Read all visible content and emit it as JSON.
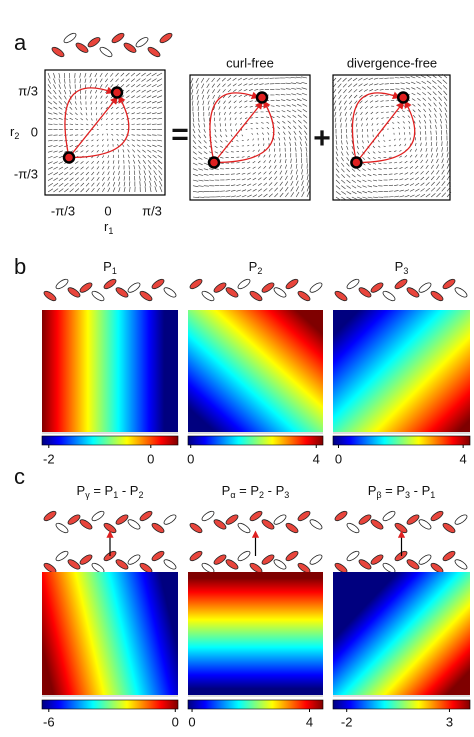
{
  "panels": {
    "a": {
      "label": "a",
      "titles": [
        "curl-free",
        "divergence-free"
      ],
      "operators": [
        "=",
        "+"
      ],
      "yticks": [
        "π/3",
        "0",
        "-π/3"
      ],
      "ylabel": [
        "r",
        "2"
      ],
      "xticks": [
        "-π/3",
        "0",
        "π/3"
      ],
      "xlabel": [
        "r",
        "1"
      ]
    },
    "b": {
      "label": "b",
      "maps": [
        {
          "title": [
            "P",
            "1"
          ],
          "cbar": [
            "-2",
            "0"
          ]
        },
        {
          "title": [
            "P",
            "2"
          ],
          "cbar": [
            "0",
            "4"
          ]
        },
        {
          "title": [
            "P",
            "3"
          ],
          "cbar": [
            "0",
            "4"
          ]
        }
      ]
    },
    "c": {
      "label": "c",
      "maps": [
        {
          "title": [
            "P",
            "γ",
            " = P",
            "1",
            " - P",
            "2"
          ],
          "cbar": [
            "-6",
            "0"
          ]
        },
        {
          "title": [
            "P",
            "α",
            " = P",
            "2",
            " - P",
            "3"
          ],
          "cbar": [
            "0",
            "4"
          ]
        },
        {
          "title": [
            "P",
            "β",
            " = P",
            "3",
            " - P",
            "1"
          ],
          "cbar": [
            "-2",
            "3"
          ]
        }
      ]
    }
  }
}
